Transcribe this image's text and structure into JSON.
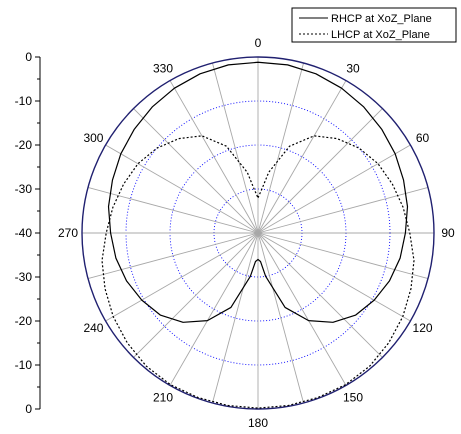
{
  "chart_data": {
    "type": "line",
    "subtype": "polar",
    "title": "",
    "angle_unit": "degrees",
    "angle_zero": "top",
    "angle_direction": "clockwise",
    "angle_ticks": [
      0,
      30,
      60,
      90,
      120,
      150,
      180,
      210,
      240,
      270,
      300,
      330
    ],
    "angle_tick_labels": [
      "0",
      "30",
      "60",
      "90",
      "120",
      "150",
      "180",
      "210",
      "240",
      "270",
      "300",
      "330"
    ],
    "radial_axis": {
      "range": [
        -40,
        0
      ],
      "ticks": [
        0,
        -10,
        -20,
        -30,
        -40
      ],
      "tick_labels_upper": [
        "0",
        "-10",
        "-20",
        "-30",
        "-40"
      ],
      "tick_labels_lower": [
        "-30",
        "-20",
        "-10",
        "0"
      ],
      "lower_values": [
        -30,
        -20,
        -10,
        0
      ]
    },
    "grid": true,
    "grid_circles": [
      -30,
      -20,
      -10
    ],
    "legend_position": "top-right",
    "series": [
      {
        "name": "RHCP at XoZ_Plane",
        "style": "solid",
        "color": "#000000",
        "theta": [
          0,
          10,
          20,
          30,
          40,
          50,
          60,
          70,
          80,
          90,
          100,
          110,
          120,
          130,
          140,
          150,
          160,
          170,
          175,
          180,
          185,
          190,
          200,
          210,
          220,
          230,
          240,
          250,
          260,
          270,
          280,
          290,
          300,
          310,
          320,
          330,
          340,
          350
        ],
        "r": [
          -1.2,
          -1.2,
          -1.5,
          -2.0,
          -2.6,
          -3.3,
          -4.0,
          -4.8,
          -5.5,
          -6.5,
          -7.2,
          -8.2,
          -9.5,
          -11.0,
          -13.5,
          -17.0,
          -22.0,
          -30.0,
          -33.5,
          -34.0,
          -33.5,
          -30.0,
          -22.0,
          -17.0,
          -13.5,
          -11.0,
          -9.5,
          -8.2,
          -7.2,
          -6.5,
          -5.5,
          -4.8,
          -4.0,
          -3.3,
          -2.6,
          -2.0,
          -1.5,
          -1.2
        ]
      },
      {
        "name": "LHCP at XoZ_Plane",
        "style": "dotted",
        "color": "#000000",
        "theta": [
          0,
          5,
          10,
          20,
          30,
          40,
          50,
          60,
          70,
          80,
          90,
          100,
          110,
          120,
          130,
          140,
          150,
          160,
          170,
          180,
          190,
          200,
          210,
          220,
          230,
          240,
          250,
          260,
          270,
          280,
          290,
          300,
          310,
          320,
          330,
          340,
          350,
          355
        ],
        "r": [
          -32.0,
          -30.0,
          -26.0,
          -19.0,
          -14.5,
          -12.0,
          -10.0,
          -8.5,
          -7.5,
          -6.5,
          -5.5,
          -4.0,
          -3.0,
          -2.0,
          -1.2,
          -0.5,
          -0.2,
          -0.2,
          -0.2,
          -0.2,
          -0.2,
          -0.2,
          -0.2,
          -0.5,
          -1.2,
          -2.0,
          -3.0,
          -4.0,
          -5.5,
          -6.5,
          -7.5,
          -8.5,
          -10.0,
          -12.0,
          -14.5,
          -19.0,
          -26.0,
          -30.0
        ]
      }
    ]
  }
}
